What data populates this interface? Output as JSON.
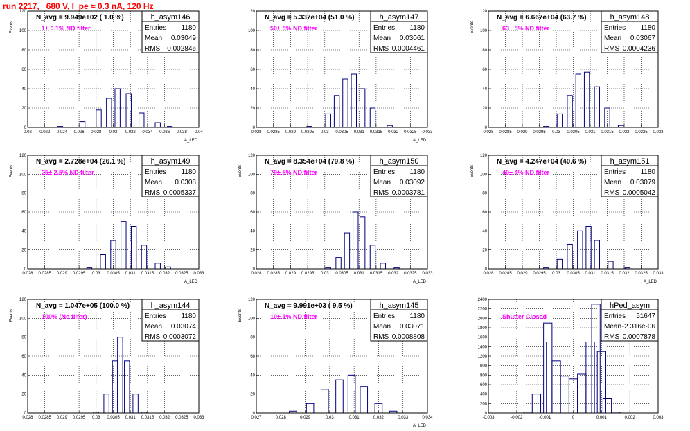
{
  "run_title": "run 2217,   680 V, I_pe ≈ 0.3 nA, 120 Hz",
  "colors": {
    "title": "#ff0000",
    "filter_label": "#ff00ff",
    "histogram": "#00007f",
    "grid": "#000000"
  },
  "chart_data": [
    {
      "type": "histogram",
      "name": "h_asym146",
      "entries": "1180",
      "mean": "0.03049",
      "rms": "0.002846",
      "navg": "N_avg = 9.949e+02 ( 1.0 %)",
      "filter": "1± 0.1% ND filter",
      "ylabel": "Events",
      "xlabel": "A_LED",
      "xlim": [
        0.02,
        0.04
      ],
      "ylim": [
        0,
        120
      ],
      "xticks": [
        "0.02",
        "0.022",
        "0.024",
        "0.026",
        "0.028",
        "0.03",
        "0.032",
        "0.034",
        "0.036",
        "0.038",
        "0.04"
      ],
      "yticks": [
        "0",
        "20",
        "40",
        "60",
        "80",
        "100",
        "120"
      ],
      "bins": [
        0.0238,
        0.0264,
        0.0283,
        0.0295,
        0.0305,
        0.0318,
        0.0333,
        0.0352,
        0.0366
      ],
      "counts": [
        1,
        6,
        18,
        30,
        40,
        35,
        15,
        5,
        1
      ],
      "bin_width": 0.0002
    },
    {
      "type": "histogram",
      "name": "h_asym147",
      "entries": "1180",
      "mean": "0.03061",
      "rms": "0.0004461",
      "navg": "N_avg = 5.337e+04 (51.0 %)",
      "filter": "50± 5% ND filter",
      "ylabel": "",
      "xlabel": "A_LED",
      "xlim": [
        0.028,
        0.033
      ],
      "ylim": [
        0,
        120
      ],
      "xticks": [
        "0.028",
        "0.0285",
        "0.029",
        "0.0295",
        "0.03",
        "0.0305",
        "0.031",
        "0.0315",
        "0.032",
        "0.0325",
        "0.033"
      ],
      "yticks": [
        "0",
        "20",
        "40",
        "60",
        "80",
        "100",
        "120"
      ],
      "bins": [
        0.02955,
        0.0301,
        0.03035,
        0.0306,
        0.03085,
        0.0311,
        0.0314,
        0.0319
      ],
      "counts": [
        1,
        14,
        33,
        50,
        55,
        40,
        20,
        2
      ],
      "bin_width": 5e-05
    },
    {
      "type": "histogram",
      "name": "h_asym148",
      "entries": "1180",
      "mean": "0.03067",
      "rms": "0.0004236",
      "navg": "N_avg = 6.667e+04 (63.7 %)",
      "filter": "63± 5% ND filter",
      "ylabel": "Events",
      "xlabel": "",
      "xlim": [
        0.028,
        0.033
      ],
      "ylim": [
        0,
        120
      ],
      "xticks": [
        "0.028",
        "0.0285",
        "0.029",
        "0.0295",
        "0.03",
        "0.0305",
        "0.031",
        "0.0315",
        "0.032",
        "0.0325",
        "0.033"
      ],
      "yticks": [
        "0",
        "20",
        "40",
        "60",
        "80",
        "100",
        "120"
      ],
      "bins": [
        0.0297,
        0.0301,
        0.0304,
        0.03065,
        0.0309,
        0.0312,
        0.0315,
        0.0319
      ],
      "counts": [
        1,
        14,
        33,
        55,
        57,
        42,
        20,
        2
      ],
      "bin_width": 5e-05
    },
    {
      "type": "histogram",
      "name": "h_asym149",
      "entries": "1180",
      "mean": "0.0308",
      "rms": "0.0005337",
      "navg": "N_avg = 2.728e+04 (26.1 %)",
      "filter": "25± 2.5% ND filter",
      "ylabel": "Events",
      "xlabel": "A_LED",
      "xlim": [
        0.028,
        0.033
      ],
      "ylim": [
        0,
        120
      ],
      "xticks": [
        "0.028",
        "0.0285",
        "0.029",
        "0.0295",
        "0.03",
        "0.0305",
        "0.031",
        "0.0315",
        "0.032",
        "0.0325",
        "0.033"
      ],
      "yticks": [
        "0",
        "20",
        "40",
        "60",
        "80",
        "100",
        "120"
      ],
      "bins": [
        0.0298,
        0.0302,
        0.0305,
        0.0308,
        0.0311,
        0.0314,
        0.0318,
        0.0321
      ],
      "counts": [
        1,
        15,
        30,
        50,
        45,
        25,
        6,
        2
      ],
      "bin_width": 5e-05
    },
    {
      "type": "histogram",
      "name": "h_asym150",
      "entries": "1180",
      "mean": "0.03092",
      "rms": "0.0003781",
      "navg": "N_avg = 8.354e+04 (79.8 %)",
      "filter": "79± 5% ND filter",
      "ylabel": "Events",
      "xlabel": "A_LED",
      "xlim": [
        0.028,
        0.033
      ],
      "ylim": [
        0,
        120
      ],
      "xticks": [
        "0.028",
        "0.0285",
        "0.029",
        "0.0295",
        "0.03",
        "0.0305",
        "0.031",
        "0.0315",
        "0.032",
        "0.0325",
        "0.033"
      ],
      "yticks": [
        "0",
        "20",
        "40",
        "60",
        "80",
        "100",
        "120"
      ],
      "bins": [
        0.0301,
        0.0304,
        0.03065,
        0.0309,
        0.0311,
        0.0314,
        0.0317,
        0.0321
      ],
      "counts": [
        1,
        12,
        38,
        60,
        55,
        25,
        6,
        1
      ],
      "bin_width": 5e-05
    },
    {
      "type": "histogram",
      "name": "h_asym151",
      "entries": "1180",
      "mean": "0.03079",
      "rms": "0.0005042",
      "navg": "N_avg = 4.247e+04 (40.6 %)",
      "filter": "40± 4% ND filter",
      "ylabel": "Events",
      "xlabel": "A_LED",
      "xlim": [
        0.028,
        0.033
      ],
      "ylim": [
        0,
        120
      ],
      "xticks": [
        "0.028",
        "0.0285",
        "0.029",
        "0.0295",
        "0.03",
        "0.0305",
        "0.031",
        "0.0315",
        "0.032",
        "0.0325",
        "0.033"
      ],
      "yticks": [
        "0",
        "20",
        "40",
        "60",
        "80",
        "100",
        "120"
      ],
      "bins": [
        0.0297,
        0.0301,
        0.0304,
        0.0307,
        0.03095,
        0.0312,
        0.0316,
        0.0321
      ],
      "counts": [
        1,
        10,
        26,
        40,
        45,
        30,
        8,
        1
      ],
      "bin_width": 5e-05
    },
    {
      "type": "histogram",
      "name": "h_asym144",
      "entries": "1180",
      "mean": "0.03074",
      "rms": "0.0003072",
      "navg": "N_avg = 1.047e+05 (100.0 %)",
      "filter": "100% (No filter)",
      "ylabel": "Events",
      "xlabel": "",
      "xlim": [
        0.028,
        0.033
      ],
      "ylim": [
        0,
        120
      ],
      "xticks": [
        "0.028",
        "0.0285",
        "0.029",
        "0.0295",
        "0.03",
        "0.0305",
        "0.031",
        "0.0315",
        "0.032",
        "0.0325",
        "0.033"
      ],
      "yticks": [
        "0",
        "20",
        "40",
        "60",
        "80",
        "100",
        "120"
      ],
      "bins": [
        0.03,
        0.0303,
        0.03055,
        0.0307,
        0.0309,
        0.03115,
        0.0314
      ],
      "counts": [
        1,
        20,
        55,
        80,
        55,
        20,
        1
      ],
      "bin_width": 5e-05
    },
    {
      "type": "histogram",
      "name": "h_asym145",
      "entries": "1180",
      "mean": "0.03071",
      "rms": "0.0008808",
      "navg": "N_avg = 9.991e+03 ( 9.5 %)",
      "filter": "10± 1% ND filter",
      "ylabel": "Events",
      "xlabel": "A_LED",
      "xlim": [
        0.027,
        0.034
      ],
      "ylim": [
        0,
        120
      ],
      "xticks": [
        "0.027",
        "0.028",
        "0.029",
        "0.03",
        "0.031",
        "0.032",
        "0.033",
        "0.034"
      ],
      "yticks": [
        "0",
        "20",
        "40",
        "60",
        "80",
        "100",
        "120"
      ],
      "bins": [
        0.0285,
        0.0292,
        0.0298,
        0.0304,
        0.0309,
        0.0314,
        0.032,
        0.0326
      ],
      "counts": [
        2,
        10,
        25,
        35,
        40,
        28,
        10,
        2
      ],
      "bin_width": 0.0001
    },
    {
      "type": "histogram",
      "name": "hPed_asym",
      "entries": "51647",
      "mean": "-2.316e-06",
      "rms": "0.0007878",
      "navg": "",
      "filter": "Shutter Closed",
      "ylabel": "",
      "xlabel": "",
      "xlim": [
        -0.003,
        0.003
      ],
      "ylim": [
        0,
        2400
      ],
      "xticks": [
        "-0.003",
        "-0.002",
        "-0.001",
        "0",
        "0.001",
        "0.002",
        "0.003"
      ],
      "yticks": [
        "0",
        "200",
        "400",
        "600",
        "800",
        "1000",
        "1200",
        "1400",
        "1600",
        "1800",
        "2000",
        "2200",
        "2400"
      ],
      "bins": [
        -0.0016,
        -0.0013,
        -0.0011,
        -0.0009,
        -0.0006,
        -0.0003,
        0.0,
        0.0003,
        0.0006,
        0.0008,
        0.001,
        0.0012,
        0.0015
      ],
      "counts": [
        20,
        400,
        1500,
        1900,
        1100,
        780,
        720,
        820,
        1500,
        2300,
        1300,
        300,
        20
      ],
      "bin_width": 0.0001
    }
  ]
}
